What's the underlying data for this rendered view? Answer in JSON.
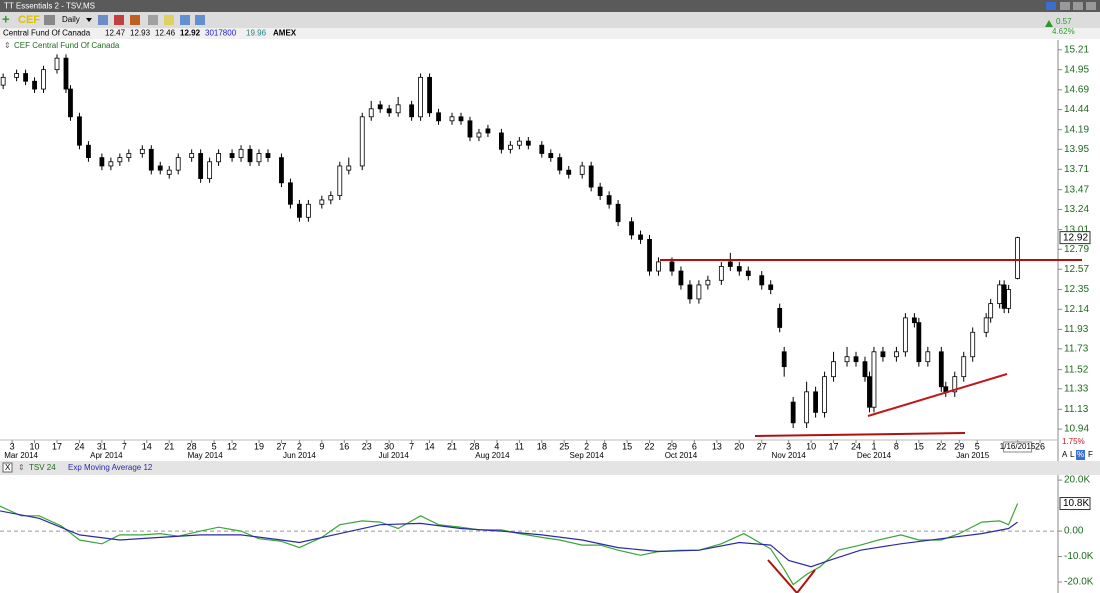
{
  "header": {
    "window_title": "TT Essentials 2 - TSV,MS",
    "symbol": "CEF",
    "period": "Daily",
    "company": "Central Fund Of Canada",
    "open": "12.47",
    "high": "12.93",
    "low": "12.46",
    "close": "12.92",
    "volume": "3017800",
    "other": "19.96",
    "exchange": "AMEX",
    "change": "0.57",
    "change_pct": "4.62%",
    "panel_title": "CEF Central Fund Of Canada",
    "axis_buttons": [
      "A",
      "L",
      "%",
      "F"
    ]
  },
  "chart_data": [
    {
      "type": "candlestick",
      "log_scale": true,
      "xlim": [
        -2.7,
        233
      ],
      "ylim": [
        10.79,
        15.34
      ],
      "x": [
        -2,
        1,
        3,
        5,
        7,
        10,
        12,
        13,
        15,
        17,
        20,
        22,
        24,
        26,
        29,
        31,
        33,
        35,
        37,
        40,
        42,
        44,
        46,
        49,
        51,
        53,
        55,
        57,
        60,
        62,
        64,
        66,
        69,
        71,
        73,
        75,
        78,
        80,
        82,
        84,
        86,
        89,
        91,
        93,
        95,
        98,
        100,
        102,
        104,
        106,
        109,
        111,
        113,
        115,
        118,
        120,
        122,
        124,
        127,
        129,
        131,
        133,
        135,
        138,
        140,
        142,
        144,
        147,
        149,
        151,
        153,
        155,
        158,
        160,
        162,
        164,
        167,
        169,
        171,
        172,
        174,
        177,
        179,
        181,
        183,
        186,
        188,
        190,
        191,
        192,
        194,
        197,
        199,
        201,
        202,
        204,
        207,
        208,
        210,
        212,
        214,
        217,
        218,
        220,
        221,
        222,
        224
      ],
      "open": [
        14.75,
        14.85,
        14.9,
        14.8,
        14.7,
        14.95,
        15.1,
        14.7,
        14.35,
        14.0,
        13.85,
        13.75,
        13.8,
        13.85,
        13.9,
        13.95,
        13.75,
        13.65,
        13.7,
        13.85,
        13.9,
        13.6,
        13.8,
        13.9,
        13.85,
        13.95,
        13.8,
        13.9,
        13.85,
        13.55,
        13.3,
        13.15,
        13.3,
        13.35,
        13.4,
        13.7,
        13.75,
        14.35,
        14.5,
        14.45,
        14.4,
        14.5,
        14.35,
        14.85,
        14.4,
        14.3,
        14.35,
        14.3,
        14.1,
        14.2,
        14.15,
        13.95,
        14.0,
        14.05,
        14.0,
        13.9,
        13.85,
        13.7,
        13.65,
        13.75,
        13.5,
        13.4,
        13.3,
        13.1,
        12.95,
        12.9,
        12.55,
        12.65,
        12.55,
        12.4,
        12.25,
        12.4,
        12.45,
        12.65,
        12.6,
        12.55,
        12.5,
        12.4,
        12.15,
        11.7,
        11.2,
        11.0,
        11.3,
        11.1,
        11.45,
        11.6,
        11.65,
        11.6,
        11.45,
        11.15,
        11.7,
        11.65,
        11.7,
        12.05,
        12.0,
        11.6,
        11.7,
        11.35,
        11.3,
        11.45,
        11.65,
        11.9,
        12.05,
        12.2,
        12.4,
        12.15,
        12.47
      ],
      "high": [
        14.9,
        14.95,
        14.95,
        14.85,
        15.0,
        15.15,
        15.15,
        14.75,
        14.4,
        14.05,
        13.9,
        13.85,
        13.9,
        13.95,
        14.0,
        14.0,
        13.8,
        13.75,
        13.9,
        13.95,
        13.95,
        13.85,
        13.95,
        13.95,
        14.0,
        14.0,
        13.95,
        13.95,
        13.9,
        13.6,
        13.35,
        13.35,
        13.4,
        13.45,
        13.8,
        13.85,
        14.4,
        14.55,
        14.55,
        14.5,
        14.6,
        14.55,
        14.9,
        14.9,
        14.45,
        14.4,
        14.4,
        14.35,
        14.2,
        14.25,
        14.2,
        14.05,
        14.1,
        14.1,
        14.05,
        13.95,
        13.9,
        13.75,
        13.8,
        13.8,
        13.55,
        13.45,
        13.35,
        13.15,
        13.0,
        12.95,
        12.7,
        12.7,
        12.6,
        12.45,
        12.45,
        12.5,
        12.65,
        12.75,
        12.65,
        12.6,
        12.55,
        12.45,
        12.2,
        11.75,
        11.25,
        11.4,
        11.35,
        11.5,
        11.7,
        11.75,
        11.7,
        11.65,
        11.5,
        11.75,
        11.75,
        11.75,
        12.1,
        12.1,
        12.05,
        11.75,
        11.75,
        11.4,
        11.5,
        11.7,
        11.95,
        12.1,
        12.25,
        12.45,
        12.45,
        12.4,
        12.93
      ],
      "low": [
        14.7,
        14.8,
        14.75,
        14.65,
        14.65,
        14.9,
        14.65,
        14.3,
        13.95,
        13.8,
        13.7,
        13.7,
        13.75,
        13.8,
        13.85,
        13.65,
        13.65,
        13.6,
        13.65,
        13.8,
        13.55,
        13.55,
        13.75,
        13.8,
        13.8,
        13.75,
        13.75,
        13.8,
        13.5,
        13.25,
        13.1,
        13.1,
        13.25,
        13.3,
        13.35,
        13.65,
        13.7,
        14.3,
        14.4,
        14.35,
        14.35,
        14.3,
        14.3,
        14.35,
        14.25,
        14.25,
        14.25,
        14.05,
        14.05,
        14.1,
        13.9,
        13.9,
        13.95,
        13.95,
        13.85,
        13.8,
        13.65,
        13.6,
        13.6,
        13.45,
        13.35,
        13.25,
        13.05,
        12.9,
        12.85,
        12.5,
        12.5,
        12.5,
        12.35,
        12.2,
        12.2,
        12.35,
        12.4,
        12.55,
        12.5,
        12.45,
        12.35,
        12.3,
        11.9,
        11.45,
        10.95,
        10.95,
        11.05,
        11.05,
        11.4,
        11.55,
        11.55,
        11.4,
        11.1,
        11.1,
        11.6,
        11.6,
        11.65,
        11.95,
        11.55,
        11.55,
        11.3,
        11.25,
        11.25,
        11.4,
        11.6,
        11.85,
        12.0,
        12.15,
        12.1,
        12.1,
        12.46
      ],
      "close": [
        14.85,
        14.9,
        14.8,
        14.7,
        14.95,
        15.1,
        14.7,
        14.35,
        14.0,
        13.85,
        13.75,
        13.8,
        13.85,
        13.9,
        13.95,
        13.7,
        13.7,
        13.7,
        13.85,
        13.9,
        13.6,
        13.8,
        13.9,
        13.85,
        13.95,
        13.8,
        13.9,
        13.85,
        13.55,
        13.3,
        13.15,
        13.3,
        13.35,
        13.4,
        13.75,
        13.75,
        14.35,
        14.45,
        14.45,
        14.4,
        14.5,
        14.35,
        14.85,
        14.4,
        14.3,
        14.35,
        14.3,
        14.1,
        14.15,
        14.15,
        13.95,
        14.0,
        14.05,
        14.0,
        13.9,
        13.85,
        13.7,
        13.65,
        13.75,
        13.5,
        13.4,
        13.3,
        13.1,
        12.95,
        12.9,
        12.55,
        12.65,
        12.55,
        12.4,
        12.25,
        12.4,
        12.45,
        12.6,
        12.6,
        12.55,
        12.5,
        12.4,
        12.35,
        11.95,
        11.55,
        11.0,
        11.3,
        11.1,
        11.45,
        11.6,
        11.65,
        11.6,
        11.45,
        11.15,
        11.7,
        11.65,
        11.7,
        12.05,
        12.0,
        11.6,
        11.7,
        11.35,
        11.3,
        11.45,
        11.65,
        11.9,
        12.05,
        12.2,
        12.4,
        12.15,
        12.35,
        12.92
      ],
      "up_color": "#ffffff",
      "down_color": "#000000",
      "yticks": [
        15.21,
        14.95,
        14.69,
        14.44,
        14.19,
        13.95,
        13.71,
        13.47,
        13.24,
        13.01,
        12.79,
        12.57,
        12.35,
        12.14,
        11.93,
        11.73,
        11.52,
        11.33,
        11.13,
        10.94
      ],
      "xticks": [
        {
          "value": 0,
          "label": "3"
        },
        {
          "value": 5,
          "label": "10"
        },
        {
          "value": 10,
          "label": "17"
        },
        {
          "value": 15,
          "label": "24"
        },
        {
          "value": 20,
          "label": "31"
        },
        {
          "value": 25,
          "label": "7"
        },
        {
          "value": 30,
          "label": "14"
        },
        {
          "value": 35,
          "label": "21"
        },
        {
          "value": 40,
          "label": "28"
        },
        {
          "value": 45,
          "label": "5"
        },
        {
          "value": 49,
          "label": "12"
        },
        {
          "value": 55,
          "label": "19"
        },
        {
          "value": 60,
          "label": "27"
        },
        {
          "value": 64,
          "label": "2"
        },
        {
          "value": 69,
          "label": "9"
        },
        {
          "value": 74,
          "label": "16"
        },
        {
          "value": 79,
          "label": "23"
        },
        {
          "value": 84,
          "label": "30"
        },
        {
          "value": 89,
          "label": "7"
        },
        {
          "value": 93,
          "label": "14"
        },
        {
          "value": 98,
          "label": "21"
        },
        {
          "value": 103,
          "label": "28"
        },
        {
          "value": 108,
          "label": "4"
        },
        {
          "value": 113,
          "label": "11"
        },
        {
          "value": 118,
          "label": "18"
        },
        {
          "value": 123,
          "label": "25"
        },
        {
          "value": 128,
          "label": "2"
        },
        {
          "value": 132,
          "label": "8"
        },
        {
          "value": 137,
          "label": "15"
        },
        {
          "value": 142,
          "label": "22"
        },
        {
          "value": 147,
          "label": "29"
        },
        {
          "value": 152,
          "label": "6"
        },
        {
          "value": 157,
          "label": "13"
        },
        {
          "value": 162,
          "label": "20"
        },
        {
          "value": 167,
          "label": "27"
        },
        {
          "value": 173,
          "label": "3"
        },
        {
          "value": 178,
          "label": "10"
        },
        {
          "value": 183,
          "label": "17"
        },
        {
          "value": 188,
          "label": "24"
        },
        {
          "value": 192,
          "label": "1"
        },
        {
          "value": 197,
          "label": "8"
        },
        {
          "value": 202,
          "label": "15"
        },
        {
          "value": 207,
          "label": "22"
        },
        {
          "value": 211,
          "label": "29"
        },
        {
          "value": 215,
          "label": "5"
        },
        {
          "value": 224,
          "label": "1/16/2015"
        },
        {
          "value": 229,
          "label": "26"
        }
      ],
      "month_labels": [
        {
          "value": 2,
          "label": "Mar 2014"
        },
        {
          "value": 21,
          "label": "Apr 2014"
        },
        {
          "value": 43,
          "label": "May 2014"
        },
        {
          "value": 64,
          "label": "Jun 2014"
        },
        {
          "value": 85,
          "label": "Jul 2014"
        },
        {
          "value": 107,
          "label": "Aug 2014"
        },
        {
          "value": 128,
          "label": "Sep 2014"
        },
        {
          "value": 149,
          "label": "Oct 2014"
        },
        {
          "value": 173,
          "label": "Nov 2014"
        },
        {
          "value": 192,
          "label": "Dec 2014"
        },
        {
          "value": 214,
          "label": "Jan 2015"
        }
      ],
      "scale_note": "1.75%"
    },
    {
      "type": "line",
      "xlim": [
        -2.7,
        233
      ],
      "ylim": [
        -24300,
        22000
      ],
      "zero_line": true,
      "yticks": [
        {
          "value": 20000,
          "label": "20.0K"
        },
        {
          "value": 0,
          "label": "0.00"
        },
        {
          "value": -10000,
          "label": "-10.0K"
        },
        {
          "value": -20000,
          "label": "-20.0K"
        }
      ],
      "series": [
        {
          "name": "TSV 24",
          "color": "#3aa636",
          "x": [
            -3,
            2,
            6,
            11,
            15,
            20,
            24,
            29,
            33,
            37,
            42,
            46,
            51,
            55,
            60,
            64,
            69,
            73,
            78,
            82,
            86,
            91,
            95,
            100,
            104,
            109,
            113,
            118,
            122,
            127,
            131,
            135,
            140,
            144,
            149,
            153,
            158,
            163,
            169,
            172,
            174,
            177,
            180,
            184,
            189,
            193,
            198,
            202,
            207,
            211,
            216,
            220,
            222,
            224
          ],
          "values": [
            10000,
            6000,
            6000,
            2000,
            -3500,
            -5000,
            -1500,
            -1500,
            -1000,
            -2000,
            0,
            1500,
            0,
            -3000,
            -4000,
            -6500,
            -2500,
            2500,
            4000,
            3500,
            1000,
            6000,
            2500,
            1500,
            500,
            500,
            -1000,
            -2500,
            -3500,
            -5500,
            -5500,
            -7500,
            -9500,
            -8000,
            -7500,
            -7500,
            -5000,
            -1000,
            -7000,
            -15000,
            -21000,
            -17000,
            -14000,
            -7500,
            -5500,
            -3500,
            -1500,
            -3500,
            -3500,
            -1000,
            3500,
            4000,
            2500,
            10800
          ],
          "value_labels": [
            null,
            null,
            null,
            null,
            null,
            null,
            null,
            null,
            null,
            null,
            null,
            null,
            null,
            null,
            null,
            null,
            null,
            null,
            null,
            null,
            null,
            null,
            null,
            null,
            null,
            null,
            null,
            null,
            null,
            null,
            null,
            null,
            null,
            null,
            null,
            null,
            null,
            null,
            null,
            null,
            null,
            null,
            null,
            null,
            null,
            null,
            null,
            null,
            null,
            null,
            null,
            null,
            null,
            "10.8K"
          ]
        },
        {
          "name": "Exp Moving Average 12",
          "color": "#2a2aa8",
          "x": [
            -3,
            6,
            15,
            24,
            33,
            42,
            51,
            60,
            64,
            73,
            82,
            91,
            100,
            109,
            118,
            127,
            135,
            144,
            153,
            162,
            169,
            173,
            178,
            182,
            189,
            198,
            207,
            216,
            222,
            224
          ],
          "values": [
            8000,
            5000,
            -1500,
            -3500,
            -2500,
            -1500,
            -1500,
            -3500,
            -4500,
            -1000,
            2500,
            3000,
            1000,
            0,
            -1500,
            -3500,
            -6500,
            -8000,
            -7500,
            -4500,
            -5500,
            -11500,
            -14000,
            -11500,
            -7500,
            -5000,
            -3000,
            -1000,
            1000,
            3500
          ]
        }
      ]
    }
  ]
}
